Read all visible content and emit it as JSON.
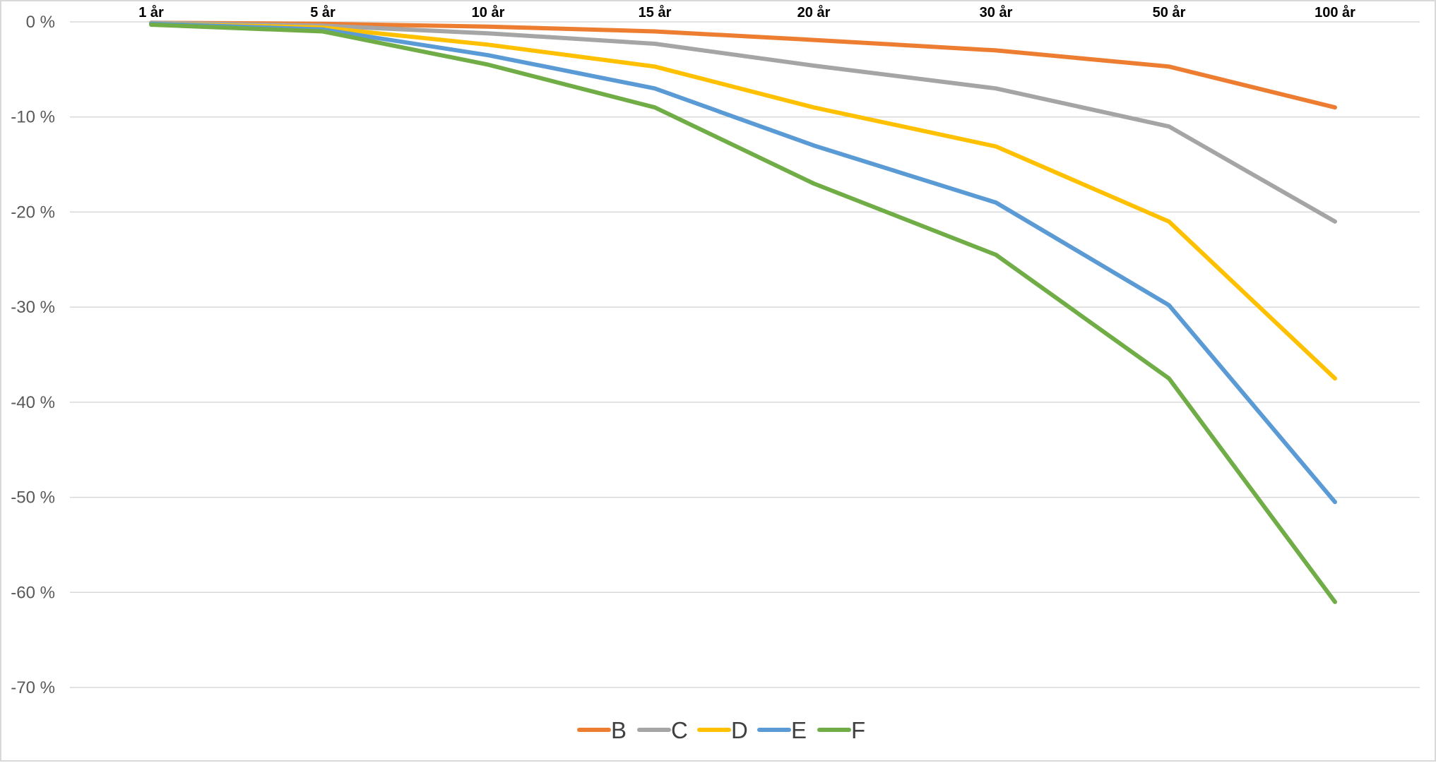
{
  "chart_data": {
    "type": "line",
    "categories": [
      "1 år",
      "5 år",
      "10 år",
      "15 år",
      "20 år",
      "30 år",
      "50 år",
      "100 år"
    ],
    "ylim": [
      -70,
      0
    ],
    "yticks": [
      {
        "value": 0,
        "label": "0 %"
      },
      {
        "value": -10,
        "label": "-10 %"
      },
      {
        "value": -20,
        "label": "-20 %"
      },
      {
        "value": -30,
        "label": "-30 %"
      },
      {
        "value": -40,
        "label": "-40 %"
      },
      {
        "value": -50,
        "label": "-50 %"
      },
      {
        "value": -60,
        "label": "-60 %"
      },
      {
        "value": -70,
        "label": "-70 %"
      }
    ],
    "grid": true,
    "legend_position": "bottom",
    "series": [
      {
        "name": "B",
        "color": "#ED7D31",
        "values": [
          -0.1,
          -0.2,
          -0.5,
          -1.0,
          -1.9,
          -3.0,
          -4.7,
          -9.0
        ]
      },
      {
        "name": "C",
        "color": "#A5A5A5",
        "values": [
          -0.1,
          -0.4,
          -1.2,
          -2.3,
          -4.6,
          -7.0,
          -11.0,
          -21.0
        ]
      },
      {
        "name": "D",
        "color": "#FFC000",
        "values": [
          -0.2,
          -0.6,
          -2.4,
          -4.7,
          -9.0,
          -13.1,
          -21.0,
          -37.5
        ]
      },
      {
        "name": "E",
        "color": "#5B9BD5",
        "values": [
          -0.2,
          -0.8,
          -3.5,
          -7.0,
          -13.0,
          -19.0,
          -29.8,
          -50.5
        ]
      },
      {
        "name": "F",
        "color": "#70AD47",
        "values": [
          -0.3,
          -1.0,
          -4.5,
          -9.0,
          -17.0,
          -24.5,
          -37.5,
          -61.0
        ]
      }
    ]
  }
}
